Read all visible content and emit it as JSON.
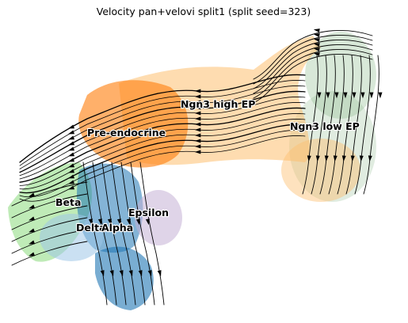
{
  "chart_data": {
    "type": "scatter",
    "title": "Velocity pan+velovi split1 (split seed=323)",
    "xlabel": "",
    "ylabel": "",
    "grid": false,
    "legend": "on data",
    "axes_visible": false,
    "overlay": "velocity streamlines with arrowheads",
    "clusters": [
      {
        "name": "Ngn3 low EP",
        "color": "#8fbc8f"
      },
      {
        "name": "Ngn3 high EP",
        "color": "#fdbf6f"
      },
      {
        "name": "Pre-endocrine",
        "color": "#ff7f0e"
      },
      {
        "name": "Beta",
        "color": "#98df8a"
      },
      {
        "name": "Alpha",
        "color": "#1f77b4"
      },
      {
        "name": "Delta",
        "color": "#9ec6e8"
      },
      {
        "name": "Epsilon",
        "color": "#c5b0d5"
      }
    ],
    "labels": [
      "Ngn3 high EP",
      "Pre-endocrine",
      "Ngn3 low EP",
      "Beta",
      "Epsilon",
      "Delta",
      "Alpha"
    ]
  }
}
